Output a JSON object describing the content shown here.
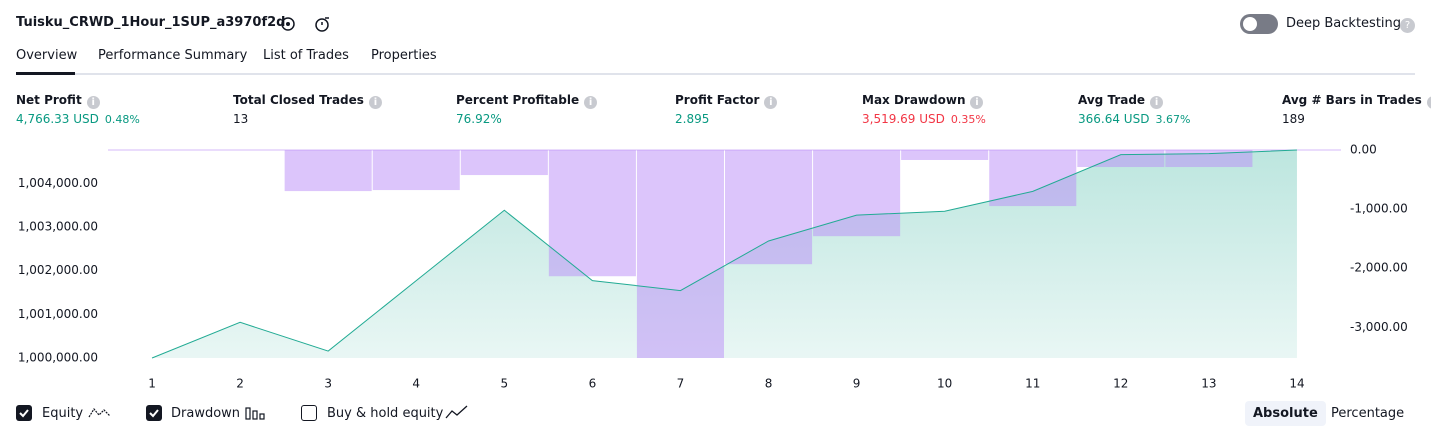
{
  "header": {
    "title": "Tuisku_CRWD_1Hour_1SUP_a3970f2d",
    "toggle_label": "Deep Backtesting"
  },
  "tabs": [
    "Overview",
    "Performance Summary",
    "List of Trades",
    "Properties"
  ],
  "metrics": [
    {
      "label": "Net Profit",
      "value": "4,766.33 USD",
      "sub": "0.48%",
      "tone": "green"
    },
    {
      "label": "Total Closed Trades",
      "value": "13",
      "tone": "plain"
    },
    {
      "label": "Percent Profitable",
      "value": "76.92%",
      "tone": "green"
    },
    {
      "label": "Profit Factor",
      "value": "2.895",
      "tone": "green"
    },
    {
      "label": "Max Drawdown",
      "value": "3,519.69 USD",
      "sub": "0.35%",
      "tone": "red"
    },
    {
      "label": "Avg Trade",
      "value": "366.64 USD",
      "sub": "3.67%",
      "tone": "green"
    },
    {
      "label": "Avg # Bars in Trades",
      "value": "189",
      "tone": "plain"
    }
  ],
  "chart_data": {
    "type": "combo",
    "categories": [
      "1",
      "2",
      "3",
      "4",
      "5",
      "6",
      "7",
      "8",
      "9",
      "10",
      "11",
      "12",
      "13",
      "14"
    ],
    "series": [
      {
        "name": "Equity",
        "kind": "area",
        "color": "#22ab94",
        "values": [
          1000000,
          1000818,
          1000159,
          1001773,
          1003386,
          1001773,
          1001545,
          1002682,
          1003273,
          1003364,
          1003818,
          1004659,
          1004682,
          1004766.33
        ]
      },
      {
        "name": "Drawdown",
        "kind": "bar",
        "axis": "y2",
        "color": "#b98cf7",
        "values": [
          0,
          0,
          -695,
          -678,
          -424,
          -2136,
          -3519.69,
          -1932,
          -1458,
          -169,
          -949,
          -288,
          -288,
          0
        ]
      }
    ],
    "ylim": [
      1000000,
      1004766.33
    ],
    "yticks": [
      {
        "value": 1000000,
        "label": "1,000,000.00"
      },
      {
        "value": 1001000,
        "label": "1,001,000.00"
      },
      {
        "value": 1002000,
        "label": "1,002,000.00"
      },
      {
        "value": 1003000,
        "label": "1,003,000.00"
      },
      {
        "value": 1004000,
        "label": "1,004,000.00"
      }
    ],
    "y2lim": [
      -3519.69,
      0
    ],
    "y2ticks": [
      {
        "value": 0,
        "label": "0.00"
      },
      {
        "value": -1000,
        "label": "-1,000.00"
      },
      {
        "value": -2000,
        "label": "-2,000.00"
      },
      {
        "value": -3000,
        "label": "-3,000.00"
      }
    ]
  },
  "legend_extra": "Buy & hold equity",
  "modes": [
    "Absolute",
    "Percentage"
  ]
}
